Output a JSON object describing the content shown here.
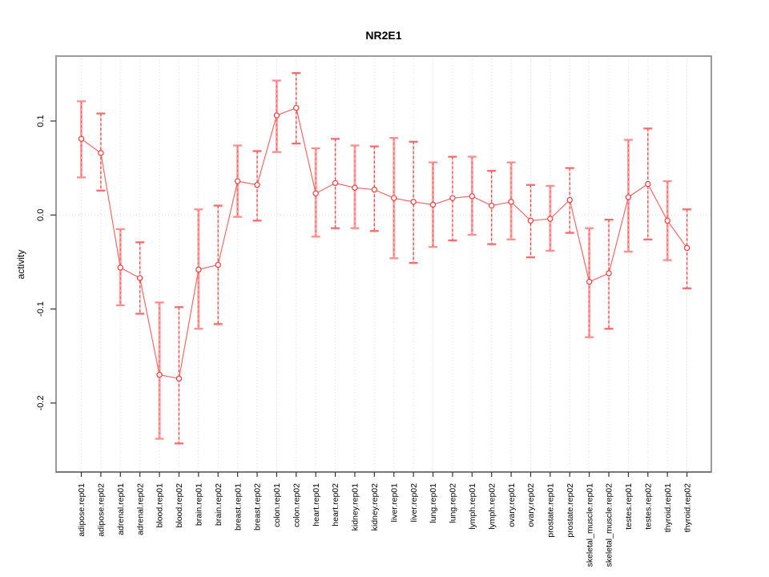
{
  "title": "NR2E1",
  "chart_data": {
    "type": "line",
    "title": "NR2E1",
    "xlabel": "",
    "ylabel": "activity",
    "legend": "none",
    "grid": "vertical dotted gridlines at each category; horizontal dotted line at y=0 only",
    "ylim": [
      -0.273,
      0.169
    ],
    "yticks": [
      0.1,
      0.0,
      -0.1,
      -0.2
    ],
    "ytick_labels": [
      "0.1",
      "0.0",
      "-0.1",
      "-0.2"
    ],
    "categories": [
      "adipose.rep01",
      "adipose.rep02",
      "adrenal.rep01",
      "adrenal.rep02",
      "blood.rep01",
      "blood.rep02",
      "brain.rep01",
      "brain.rep02",
      "breast.rep01",
      "breast.rep02",
      "colon.rep01",
      "colon.rep02",
      "heart.rep01",
      "heart.rep02",
      "kidney.rep01",
      "kidney.rep02",
      "liver.rep01",
      "liver.rep02",
      "lung.rep01",
      "lung.rep02",
      "lymph.rep01",
      "lymph.rep02",
      "ovary.rep01",
      "ovary.rep02",
      "prostate.rep01",
      "prostate.rep02",
      "skeletal_muscle.rep01",
      "skeletal_muscle.rep02",
      "testes.rep01",
      "testes.rep02",
      "thyroid.rep01",
      "thyroid.rep02"
    ],
    "series": [
      {
        "name": "activity",
        "values": [
          0.081,
          0.066,
          -0.056,
          -0.067,
          -0.17,
          -0.174,
          -0.058,
          -0.053,
          0.036,
          0.032,
          0.106,
          0.114,
          0.023,
          0.034,
          0.029,
          0.027,
          0.018,
          0.014,
          0.011,
          0.018,
          0.02,
          0.01,
          0.014,
          -0.006,
          -0.004,
          0.016,
          -0.071,
          -0.062,
          0.019,
          0.033,
          -0.006,
          -0.035
        ],
        "error_low": [
          0.04,
          0.026,
          -0.096,
          -0.105,
          -0.238,
          -0.243,
          -0.121,
          -0.116,
          -0.002,
          -0.006,
          0.067,
          0.076,
          -0.023,
          -0.014,
          -0.014,
          -0.017,
          -0.046,
          -0.051,
          -0.034,
          -0.027,
          -0.021,
          -0.031,
          -0.026,
          -0.045,
          -0.038,
          -0.019,
          -0.13,
          -0.121,
          -0.039,
          -0.026,
          -0.048,
          -0.078
        ],
        "error_high": [
          0.121,
          0.108,
          -0.015,
          -0.029,
          -0.093,
          -0.098,
          0.006,
          0.01,
          0.074,
          0.068,
          0.143,
          0.151,
          0.071,
          0.081,
          0.074,
          0.073,
          0.082,
          0.078,
          0.056,
          0.062,
          0.062,
          0.047,
          0.056,
          0.032,
          0.031,
          0.05,
          -0.014,
          -0.005,
          0.08,
          0.092,
          0.036,
          0.006
        ]
      }
    ],
    "marker": "open-circle",
    "colors": {
      "line": "#f85b5b",
      "marker_stroke": "#f23c3c",
      "errorbar_solid": "#ffa4a4",
      "errorbar_dash": "#ee4545",
      "errorbar_cap": "#ff8f8f",
      "gridline": "#dcdcdc",
      "zero_line": "#d8d8d8",
      "plot_border": "#9b9b9b",
      "axis_tick": "#333333",
      "text": "#000000"
    }
  }
}
